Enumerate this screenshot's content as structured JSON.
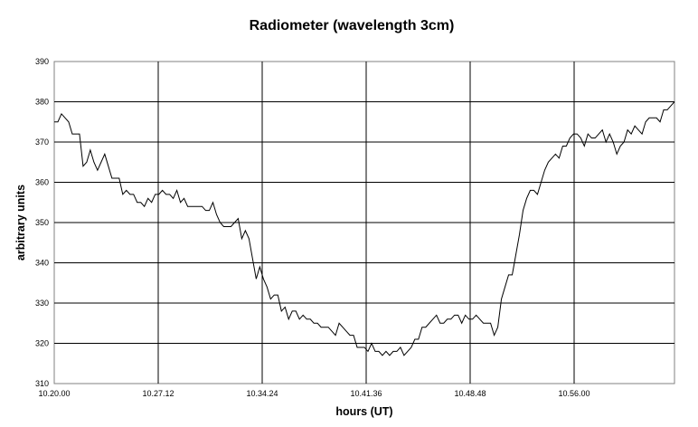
{
  "chart_data": {
    "type": "line",
    "title": "Radiometer (wavelength 3cm)",
    "xlabel": "hours (UT)",
    "ylabel": "arbitrary units",
    "ylim": [
      310,
      390
    ],
    "y_ticks": [
      "310",
      "320",
      "330",
      "340",
      "350",
      "360",
      "370",
      "380",
      "390"
    ],
    "x_ticks": [
      "10.20.00",
      "10.27.12",
      "10.34.24",
      "10.41.36",
      "10.48.48",
      "10.56.00"
    ],
    "grid": true,
    "legend": "none",
    "series": [
      {
        "x_range": [
          "10.20.00",
          "11.03.00"
        ],
        "values": [
          375,
          375,
          377,
          376,
          375,
          372,
          372,
          372,
          364,
          365,
          368,
          365,
          363,
          365,
          367,
          364,
          361,
          361,
          361,
          357,
          358,
          357,
          357,
          355,
          355,
          354,
          356,
          355,
          357,
          357,
          358,
          357,
          357,
          356,
          358,
          355,
          356,
          354,
          354,
          354,
          354,
          354,
          353,
          353,
          355,
          352,
          350,
          349,
          349,
          349,
          350,
          351,
          346,
          348,
          346,
          341,
          336,
          339,
          336,
          334,
          331,
          332,
          332,
          328,
          329,
          326,
          328,
          328,
          326,
          327,
          326,
          326,
          325,
          325,
          324,
          324,
          324,
          323,
          322,
          325,
          324,
          323,
          322,
          322,
          319,
          319,
          319,
          318,
          320,
          318,
          318,
          317,
          318,
          317,
          318,
          318,
          319,
          317,
          318,
          319,
          321,
          321,
          324,
          324,
          325,
          326,
          327,
          325,
          325,
          326,
          326,
          327,
          327,
          325,
          327,
          326,
          326,
          327,
          326,
          325,
          325,
          325,
          322,
          324,
          331,
          334,
          337,
          337,
          342,
          347,
          353,
          356,
          358,
          358,
          357,
          360,
          363,
          365,
          366,
          367,
          366,
          369,
          369,
          371,
          372,
          372,
          371,
          369,
          372,
          371,
          371,
          372,
          373,
          370,
          372,
          370,
          367,
          369,
          370,
          373,
          372,
          374,
          373,
          372,
          375,
          376,
          376,
          376,
          375,
          378,
          378,
          379,
          380
        ],
        "color": "#000000"
      }
    ]
  }
}
